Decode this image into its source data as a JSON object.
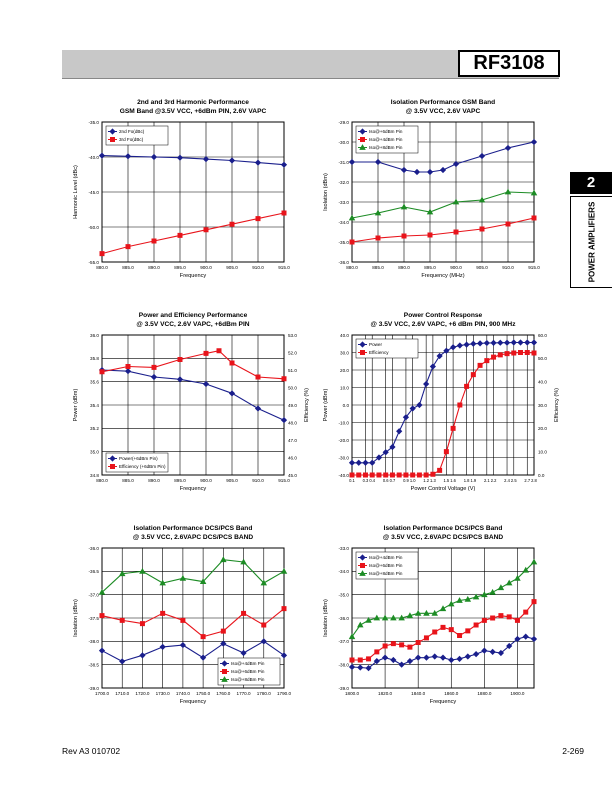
{
  "header": {
    "part_number": "RF3108"
  },
  "side_tab": {
    "number": "2",
    "label": "POWER AMPLIFIERS"
  },
  "footer": {
    "revision": "Rev A3 010702",
    "page": "2-269"
  },
  "colors": {
    "blue": "#1a1f8c",
    "red": "#e8141b",
    "green": "#1d8c25",
    "grid": "#000000"
  },
  "chart_data": [
    {
      "type": "line",
      "title_lines": [
        "2nd and 3rd Harmonic Performance",
        "GSM Band @3.5V VCC, +6dBm PIN, 2.6V VAPC"
      ],
      "xlabel": "Frequency",
      "ylabel": "Harmonic Level (dBc)",
      "xlim": [
        880,
        915
      ],
      "ylim": [
        -55,
        -35
      ],
      "xticks": [
        880,
        885,
        890,
        895,
        900,
        905,
        910,
        915
      ],
      "xtick_labels": [
        "880.0",
        "885.0",
        "890.0",
        "895.0",
        "900.0",
        "905.0",
        "910.0",
        "915.0"
      ],
      "yticks": [
        -55,
        -50,
        -45,
        -40,
        -35
      ],
      "ytick_labels": [
        "-55.0",
        "-50.0",
        "-45.0",
        "-40.0",
        "-35.0"
      ],
      "legend": "top-left",
      "series": [
        {
          "name": "2nd Fo(dBc)",
          "color": "#1a1f8c",
          "marker": "diamond",
          "x": [
            880,
            885,
            890,
            895,
            900,
            905,
            910,
            915
          ],
          "y": [
            -39.8,
            -39.9,
            -40.0,
            -40.1,
            -40.3,
            -40.5,
            -40.8,
            -41.1
          ]
        },
        {
          "name": "3rd Fo(dBc)",
          "color": "#e8141b",
          "marker": "square",
          "x": [
            880,
            885,
            890,
            895,
            900,
            905,
            910,
            915
          ],
          "y": [
            -53.8,
            -52.8,
            -52.0,
            -51.2,
            -50.4,
            -49.6,
            -48.8,
            -48.0
          ]
        }
      ]
    },
    {
      "type": "line",
      "title_lines": [
        "Isolation Performance GSM Band",
        "@ 3.5V VCC, 2.6V VAPC"
      ],
      "xlabel": "Frequency (MHz)",
      "ylabel": "Isolation (dBm)",
      "xlim": [
        880,
        915
      ],
      "ylim": [
        -36,
        -29
      ],
      "xticks": [
        880,
        885,
        890,
        895,
        900,
        905,
        910,
        915
      ],
      "xtick_labels": [
        "880.0",
        "885.0",
        "890.0",
        "895.0",
        "900.0",
        "905.0",
        "910.0",
        "915.0"
      ],
      "yticks": [
        -36,
        -35,
        -34,
        -33,
        -32,
        -31,
        -30,
        -29
      ],
      "ytick_labels": [
        "-36.0",
        "-35.0",
        "-34.0",
        "-33.0",
        "-32.0",
        "-31.0",
        "-30.0",
        "-29.0"
      ],
      "legend": "top-left",
      "series": [
        {
          "name": "Iso@+6dBm Pin",
          "color": "#1a1f8c",
          "marker": "diamond",
          "x": [
            880,
            885,
            890,
            892.5,
            895,
            897.5,
            900,
            905,
            910,
            915
          ],
          "y": [
            -31.0,
            -31.0,
            -31.4,
            -31.5,
            -31.5,
            -31.4,
            -31.1,
            -30.7,
            -30.3,
            -30.0
          ]
        },
        {
          "name": "Iso@+4dBm Pin",
          "color": "#e8141b",
          "marker": "square",
          "x": [
            880,
            885,
            890,
            895,
            900,
            905,
            910,
            915
          ],
          "y": [
            -35.0,
            -34.8,
            -34.7,
            -34.65,
            -34.5,
            -34.35,
            -34.1,
            -33.8
          ]
        },
        {
          "name": "Iso@+8dBm Pin",
          "color": "#1d8c25",
          "marker": "triangle",
          "x": [
            880,
            885,
            890,
            895,
            900,
            905,
            910,
            915
          ],
          "y": [
            -33.8,
            -33.55,
            -33.25,
            -33.5,
            -33.0,
            -32.9,
            -32.5,
            -32.55
          ]
        }
      ]
    },
    {
      "type": "line",
      "title_lines": [
        "Power and Efficiency Performance",
        "@ 3.5V VCC, 2.6V VAPC, +6dBm PIN"
      ],
      "xlabel": "Frequency",
      "ylabel": "Power (dBm)",
      "y2label": "Efficiency (%)",
      "xlim": [
        880,
        915
      ],
      "ylim": [
        34.8,
        36.0
      ],
      "y2lim": [
        45,
        53
      ],
      "xticks": [
        880,
        885,
        890,
        895,
        900,
        905,
        910,
        915
      ],
      "xtick_labels": [
        "880.0",
        "885.0",
        "890.0",
        "895.0",
        "900.0",
        "905.0",
        "910.0",
        "915.0"
      ],
      "yticks": [
        34.8,
        35.0,
        35.2,
        35.4,
        35.6,
        35.8,
        36.0
      ],
      "ytick_labels": [
        "34.8",
        "35.0",
        "35.2",
        "35.4",
        "35.6",
        "35.8",
        "36.0"
      ],
      "y2ticks": [
        45,
        46,
        47,
        48,
        49,
        50,
        51,
        52,
        53
      ],
      "y2tick_labels": [
        "45.0",
        "46.0",
        "47.0",
        "48.0",
        "49.0",
        "50.0",
        "51.0",
        "52.0",
        "53.0"
      ],
      "legend": "bottom-left",
      "series": [
        {
          "name": "Power(+6dBm Pin)",
          "color": "#1a1f8c",
          "marker": "diamond",
          "axis": "left",
          "x": [
            880,
            885,
            890,
            895,
            900,
            905,
            910,
            915
          ],
          "y": [
            35.7,
            35.69,
            35.64,
            35.62,
            35.58,
            35.5,
            35.37,
            35.27
          ]
        },
        {
          "name": "Efficiency (+6dBm Pin)",
          "color": "#e8141b",
          "marker": "square",
          "axis": "right",
          "x": [
            880,
            885,
            890,
            895,
            900,
            902.5,
            905,
            910,
            915
          ],
          "y": [
            50.9,
            51.2,
            51.15,
            51.6,
            51.95,
            52.1,
            51.4,
            50.6,
            50.5
          ]
        }
      ]
    },
    {
      "type": "line",
      "title_lines": [
        "Power Control Response",
        "@ 3.5V VCC, 2.6V VAPC, +6 dBm PIN, 900 MHz"
      ],
      "xlabel": "Power Control Voltage (V)",
      "ylabel": "Power (dBm)",
      "y2label": "Efficiency (%)",
      "xlim": [
        0.1,
        2.8
      ],
      "ylim": [
        -40,
        40
      ],
      "y2lim": [
        0,
        60
      ],
      "xticks": [
        0.1,
        0.3,
        0.4,
        0.6,
        0.7,
        0.9,
        1.0,
        1.2,
        1.3,
        1.5,
        1.6,
        1.8,
        1.9,
        2.1,
        2.2,
        2.4,
        2.5,
        2.7,
        2.8
      ],
      "xtick_labels": [
        "0.1",
        "0.3",
        "0.4",
        "0.6",
        "0.7",
        "0.9",
        "1.0",
        "1.2",
        "1.3",
        "1.5",
        "1.6",
        "1.8",
        "1.9",
        "2.1",
        "2.2",
        "2.4",
        "2.5",
        "2.7",
        "2.8"
      ],
      "yticks": [
        -40,
        -30,
        -20,
        -10,
        0,
        10,
        20,
        30,
        40
      ],
      "ytick_labels": [
        "-40.0",
        "-30.0",
        "-20.0",
        "-10.0",
        "0.0",
        "10.0",
        "20.0",
        "30.0",
        "40.0"
      ],
      "y2ticks": [
        0,
        10,
        20,
        30,
        40,
        50,
        60
      ],
      "y2tick_labels": [
        "0.0",
        "10.0",
        "20.0",
        "30.0",
        "40.0",
        "50.0",
        "60.0"
      ],
      "legend": "top-left",
      "series": [
        {
          "name": "Power",
          "color": "#1a1f8c",
          "marker": "diamond",
          "axis": "left",
          "x": [
            0.1,
            0.2,
            0.3,
            0.4,
            0.5,
            0.6,
            0.7,
            0.8,
            0.9,
            1.0,
            1.1,
            1.2,
            1.3,
            1.4,
            1.5,
            1.6,
            1.7,
            1.8,
            1.9,
            2.0,
            2.1,
            2.2,
            2.3,
            2.4,
            2.5,
            2.6,
            2.7,
            2.8
          ],
          "y": [
            -33,
            -33,
            -33,
            -33,
            -30,
            -27,
            -24,
            -15,
            -7,
            -2,
            0,
            12,
            22,
            28,
            31,
            33,
            34,
            34.5,
            35,
            35.2,
            35.4,
            35.5,
            35.6,
            35.6,
            35.7,
            35.7,
            35.7,
            35.7
          ]
        },
        {
          "name": "Efficiency",
          "color": "#e8141b",
          "marker": "square",
          "axis": "right",
          "x": [
            0.1,
            0.2,
            0.3,
            0.4,
            0.5,
            0.6,
            0.7,
            0.8,
            0.9,
            1.0,
            1.1,
            1.2,
            1.3,
            1.4,
            1.5,
            1.6,
            1.7,
            1.8,
            1.9,
            2.0,
            2.1,
            2.2,
            2.3,
            2.4,
            2.5,
            2.6,
            2.7,
            2.8
          ],
          "y": [
            0,
            0,
            0,
            0,
            0,
            0,
            0,
            0,
            0,
            0,
            0,
            0,
            0.3,
            2,
            10,
            20,
            30,
            38,
            43,
            47,
            49,
            50.5,
            51.5,
            52,
            52.3,
            52.5,
            52.5,
            52.3
          ]
        }
      ]
    },
    {
      "type": "line",
      "title_lines": [
        "Isolation Performance DCS/PCS Band",
        "@ 3.5V VCC, 2.6VAPC DCS/PCS BAND"
      ],
      "xlabel": "Frequency",
      "ylabel": "Isolation (dBm)",
      "xlim": [
        1700,
        1790
      ],
      "ylim": [
        -39,
        -36
      ],
      "xticks": [
        1700,
        1710,
        1720,
        1730,
        1740,
        1750,
        1760,
        1770,
        1780,
        1790
      ],
      "xtick_labels": [
        "1700.0",
        "1710.0",
        "1720.0",
        "1730.0",
        "1740.0",
        "1750.0",
        "1760.0",
        "1770.0",
        "1780.0",
        "1790.0"
      ],
      "yticks": [
        -39,
        -38.5,
        -38,
        -37.5,
        -37,
        -36.5,
        -36
      ],
      "ytick_labels": [
        "-39.0",
        "-38.5",
        "-38.0",
        "-37.5",
        "-37.0",
        "-36.5",
        "-36.0"
      ],
      "legend": "bottom-right",
      "series": [
        {
          "name": "Iso@+4dBm Pin",
          "color": "#1a1f8c",
          "marker": "diamond",
          "x": [
            1700,
            1710,
            1720,
            1730,
            1740,
            1750,
            1760,
            1770,
            1780,
            1790
          ],
          "y": [
            -38.2,
            -38.43,
            -38.3,
            -38.12,
            -38.08,
            -38.35,
            -38.05,
            -38.25,
            -38.0,
            -38.3
          ]
        },
        {
          "name": "Iso@+6dBm Pin",
          "color": "#e8141b",
          "marker": "square",
          "x": [
            1700,
            1710,
            1720,
            1730,
            1740,
            1750,
            1760,
            1770,
            1780,
            1790
          ],
          "y": [
            -37.45,
            -37.55,
            -37.62,
            -37.4,
            -37.55,
            -37.9,
            -37.78,
            -37.4,
            -37.65,
            -37.3
          ]
        },
        {
          "name": "Iso@+8dBm Pin",
          "color": "#1d8c25",
          "marker": "triangle",
          "x": [
            1700,
            1710,
            1720,
            1730,
            1740,
            1750,
            1760,
            1770,
            1780,
            1790
          ],
          "y": [
            -36.95,
            -36.55,
            -36.5,
            -36.75,
            -36.65,
            -36.72,
            -36.25,
            -36.3,
            -36.75,
            -36.5
          ]
        }
      ]
    },
    {
      "type": "line",
      "title_lines": [
        "Isolation Performance DCS/PCS Band",
        "@ 3.5V VCC, 2.6VAPC DCS/PCS BAND"
      ],
      "xlabel": "Frequency",
      "ylabel": "Isolation (dBm)",
      "xlim": [
        1800,
        1910
      ],
      "ylim": [
        -39,
        -33
      ],
      "xticks": [
        1800,
        1820,
        1840,
        1860,
        1880,
        1900
      ],
      "xtick_labels": [
        "1800.0",
        "1820.0",
        "1840.0",
        "1860.0",
        "1880.0",
        "1900.0"
      ],
      "yticks": [
        -39,
        -38,
        -37,
        -36,
        -35,
        -34,
        -33
      ],
      "ytick_labels": [
        "-39.0",
        "-38.0",
        "-37.0",
        "-36.0",
        "-35.0",
        "-34.0",
        "-33.0"
      ],
      "legend": "top-left",
      "series": [
        {
          "name": "Iso@+4dBm Pin",
          "color": "#1a1f8c",
          "marker": "diamond",
          "x": [
            1800,
            1805,
            1810,
            1815,
            1820,
            1825,
            1830,
            1835,
            1840,
            1845,
            1850,
            1855,
            1860,
            1865,
            1870,
            1875,
            1880,
            1885,
            1890,
            1895,
            1900,
            1905,
            1910
          ],
          "y": [
            -38.1,
            -38.12,
            -38.15,
            -37.85,
            -37.7,
            -37.8,
            -38.0,
            -37.85,
            -37.7,
            -37.7,
            -37.65,
            -37.7,
            -37.8,
            -37.75,
            -37.65,
            -37.55,
            -37.4,
            -37.45,
            -37.5,
            -37.2,
            -36.9,
            -36.8,
            -36.9
          ]
        },
        {
          "name": "Iso@+6dBm Pin",
          "color": "#e8141b",
          "marker": "square",
          "x": [
            1800,
            1805,
            1810,
            1815,
            1820,
            1825,
            1830,
            1835,
            1840,
            1845,
            1850,
            1855,
            1860,
            1865,
            1870,
            1875,
            1880,
            1885,
            1890,
            1895,
            1900,
            1905,
            1910
          ],
          "y": [
            -37.8,
            -37.8,
            -37.75,
            -37.45,
            -37.2,
            -37.1,
            -37.15,
            -37.25,
            -37.05,
            -36.85,
            -36.6,
            -36.4,
            -36.5,
            -36.75,
            -36.55,
            -36.3,
            -36.1,
            -36.0,
            -35.9,
            -35.95,
            -36.1,
            -35.75,
            -35.3
          ]
        },
        {
          "name": "Iso@+8dBm Pin",
          "color": "#1d8c25",
          "marker": "triangle",
          "x": [
            1800,
            1805,
            1810,
            1815,
            1820,
            1825,
            1830,
            1835,
            1840,
            1845,
            1850,
            1855,
            1860,
            1865,
            1870,
            1875,
            1880,
            1885,
            1890,
            1895,
            1900,
            1905,
            1910
          ],
          "y": [
            -36.8,
            -36.3,
            -36.1,
            -36.0,
            -36.0,
            -36.0,
            -36.0,
            -35.9,
            -35.8,
            -35.8,
            -35.8,
            -35.6,
            -35.4,
            -35.25,
            -35.2,
            -35.1,
            -35.0,
            -34.9,
            -34.7,
            -34.5,
            -34.3,
            -33.95,
            -33.6
          ]
        }
      ]
    }
  ]
}
